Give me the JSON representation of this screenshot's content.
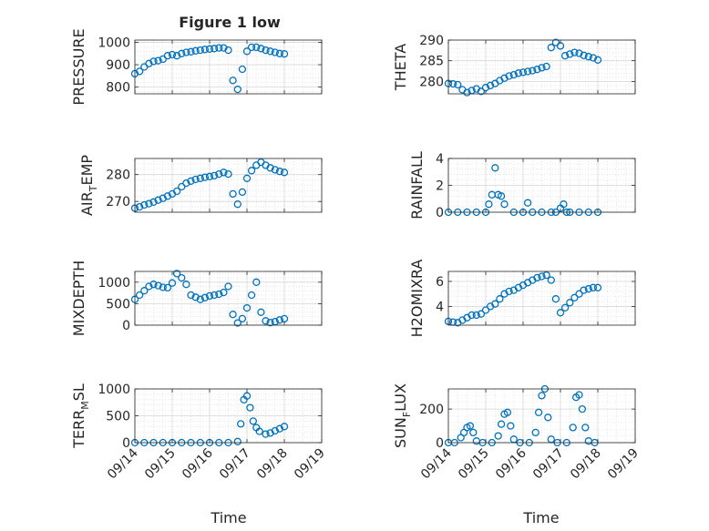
{
  "figure": {
    "title": "Figure 1 low",
    "marker_color": "#0072BD",
    "axes_color": "#262626",
    "grid_color": "#d7d7d7"
  },
  "chart_data": [
    {
      "type": "scatter",
      "ylabel": "PRESSURE",
      "ylim": [
        770,
        1010
      ],
      "yticks": [
        800,
        900,
        1000
      ],
      "x": [
        "09/14 00:00",
        "09/14 03:00",
        "09/14 06:00",
        "09/14 09:00",
        "09/14 12:00",
        "09/14 15:00",
        "09/14 18:00",
        "09/14 21:00",
        "09/15 00:00",
        "09/15 03:00",
        "09/15 06:00",
        "09/15 09:00",
        "09/15 12:00",
        "09/15 15:00",
        "09/15 18:00",
        "09/15 21:00",
        "09/16 00:00",
        "09/16 03:00",
        "09/16 06:00",
        "09/16 09:00",
        "09/16 12:00",
        "09/16 15:00",
        "09/16 18:00",
        "09/16 21:00",
        "09/17 00:00",
        "09/17 03:00",
        "09/17 06:00",
        "09/17 09:00",
        "09/17 12:00",
        "09/17 15:00",
        "09/17 18:00",
        "09/17 21:00",
        "09/18 00:00"
      ],
      "y": [
        860,
        870,
        890,
        905,
        915,
        918,
        925,
        940,
        945,
        940,
        950,
        955,
        958,
        962,
        965,
        968,
        970,
        972,
        975,
        975,
        965,
        830,
        790,
        880,
        960,
        978,
        978,
        972,
        965,
        960,
        955,
        950,
        948
      ]
    },
    {
      "type": "scatter",
      "ylabel": "THETA",
      "ylim": [
        277,
        290
      ],
      "yticks": [
        280,
        285,
        290
      ],
      "x": [
        "09/14 00:00",
        "09/14 03:00",
        "09/14 06:00",
        "09/14 09:00",
        "09/14 12:00",
        "09/14 15:00",
        "09/14 18:00",
        "09/14 21:00",
        "09/15 00:00",
        "09/15 03:00",
        "09/15 06:00",
        "09/15 09:00",
        "09/15 12:00",
        "09/15 15:00",
        "09/15 18:00",
        "09/15 21:00",
        "09/16 00:00",
        "09/16 03:00",
        "09/16 06:00",
        "09/16 09:00",
        "09/16 12:00",
        "09/16 15:00",
        "09/16 18:00",
        "09/16 21:00",
        "09/17 00:00",
        "09/17 03:00",
        "09/17 06:00",
        "09/17 09:00",
        "09/17 12:00",
        "09/17 15:00",
        "09/17 18:00",
        "09/17 21:00",
        "09/18 00:00"
      ],
      "y": [
        279.5,
        279.4,
        279.2,
        278.0,
        277.3,
        277.8,
        278.2,
        277.6,
        278.5,
        279.0,
        279.5,
        280.2,
        280.8,
        281.3,
        281.6,
        282.0,
        282.2,
        282.4,
        282.6,
        282.9,
        283.3,
        283.6,
        288.2,
        289.4,
        288.6,
        286.2,
        286.6,
        287.0,
        286.8,
        286.3,
        286.0,
        285.7,
        285.2
      ]
    },
    {
      "type": "scatter",
      "ylabel": "AIR",
      "ylabel_sub": "T",
      "ylabel_rest": "EMP",
      "ylim": [
        266,
        286
      ],
      "yticks": [
        270,
        280
      ],
      "x": [
        "09/14 00:00",
        "09/14 03:00",
        "09/14 06:00",
        "09/14 09:00",
        "09/14 12:00",
        "09/14 15:00",
        "09/14 18:00",
        "09/14 21:00",
        "09/15 00:00",
        "09/15 03:00",
        "09/15 06:00",
        "09/15 09:00",
        "09/15 12:00",
        "09/15 15:00",
        "09/15 18:00",
        "09/15 21:00",
        "09/16 00:00",
        "09/16 03:00",
        "09/16 06:00",
        "09/16 09:00",
        "09/16 12:00",
        "09/16 15:00",
        "09/16 18:00",
        "09/16 21:00",
        "09/17 00:00",
        "09/17 03:00",
        "09/17 06:00",
        "09/17 09:00",
        "09/17 12:00",
        "09/17 15:00",
        "09/17 18:00",
        "09/17 21:00",
        "09/18 00:00"
      ],
      "y": [
        267.5,
        268.0,
        268.7,
        269.2,
        269.8,
        270.5,
        271.2,
        272.0,
        272.8,
        273.8,
        275.5,
        276.8,
        277.6,
        278.2,
        278.6,
        279.0,
        279.3,
        279.6,
        280.2,
        280.8,
        280.2,
        272.8,
        269.0,
        273.5,
        278.6,
        281.5,
        283.5,
        284.6,
        283.5,
        282.5,
        281.8,
        281.2,
        280.8
      ]
    },
    {
      "type": "scatter",
      "ylabel": "RAINFALL",
      "ylim": [
        0,
        4
      ],
      "yticks": [
        0,
        2,
        4
      ],
      "x": [
        "09/14 00:00",
        "09/14 06:00",
        "09/14 12:00",
        "09/14 18:00",
        "09/15 00:00",
        "09/15 02:00",
        "09/15 04:00",
        "09/15 06:00",
        "09/15 08:00",
        "09/15 10:00",
        "09/15 12:00",
        "09/15 18:00",
        "09/16 00:00",
        "09/16 03:00",
        "09/16 06:00",
        "09/16 12:00",
        "09/16 18:00",
        "09/16 21:00",
        "09/17 00:00",
        "09/17 02:00",
        "09/17 04:00",
        "09/17 06:00",
        "09/17 12:00",
        "09/17 18:00",
        "09/18 00:00"
      ],
      "y": [
        0,
        0,
        0,
        0,
        0,
        0.6,
        1.3,
        3.3,
        1.3,
        1.2,
        0.6,
        0,
        0,
        0.7,
        0,
        0,
        0,
        0,
        0.3,
        0.6,
        0,
        0,
        0,
        0,
        0
      ]
    },
    {
      "type": "scatter",
      "ylabel": "MIXDEPTH",
      "ylim": [
        0,
        1250
      ],
      "yticks": [
        0,
        500,
        1000
      ],
      "x": [
        "09/14 00:00",
        "09/14 03:00",
        "09/14 06:00",
        "09/14 09:00",
        "09/14 12:00",
        "09/14 15:00",
        "09/14 18:00",
        "09/14 21:00",
        "09/15 00:00",
        "09/15 03:00",
        "09/15 06:00",
        "09/15 09:00",
        "09/15 12:00",
        "09/15 15:00",
        "09/15 18:00",
        "09/15 21:00",
        "09/16 00:00",
        "09/16 03:00",
        "09/16 06:00",
        "09/16 09:00",
        "09/16 12:00",
        "09/16 15:00",
        "09/16 18:00",
        "09/16 21:00",
        "09/17 00:00",
        "09/17 03:00",
        "09/17 06:00",
        "09/17 09:00",
        "09/17 12:00",
        "09/17 15:00",
        "09/17 18:00",
        "09/17 21:00",
        "09/18 00:00"
      ],
      "y": [
        600,
        700,
        800,
        900,
        950,
        920,
        880,
        870,
        980,
        1200,
        1100,
        950,
        700,
        650,
        600,
        640,
        680,
        700,
        720,
        760,
        900,
        250,
        50,
        150,
        400,
        700,
        1000,
        300,
        100,
        60,
        80,
        120,
        150
      ]
    },
    {
      "type": "scatter",
      "ylabel": "H2OMIXRA",
      "ylim": [
        2.5,
        6.8
      ],
      "yticks": [
        4,
        6
      ],
      "x": [
        "09/14 00:00",
        "09/14 03:00",
        "09/14 06:00",
        "09/14 09:00",
        "09/14 12:00",
        "09/14 15:00",
        "09/14 18:00",
        "09/14 21:00",
        "09/15 00:00",
        "09/15 03:00",
        "09/15 06:00",
        "09/15 09:00",
        "09/15 12:00",
        "09/15 15:00",
        "09/15 18:00",
        "09/15 21:00",
        "09/16 00:00",
        "09/16 03:00",
        "09/16 06:00",
        "09/16 09:00",
        "09/16 12:00",
        "09/16 15:00",
        "09/16 18:00",
        "09/16 21:00",
        "09/17 00:00",
        "09/17 03:00",
        "09/17 06:00",
        "09/17 09:00",
        "09/17 12:00",
        "09/17 15:00",
        "09/17 18:00",
        "09/17 21:00",
        "09/18 00:00"
      ],
      "y": [
        2.8,
        2.75,
        2.7,
        2.9,
        3.1,
        3.3,
        3.3,
        3.4,
        3.7,
        4.0,
        4.2,
        4.6,
        5.0,
        5.2,
        5.3,
        5.5,
        5.7,
        5.9,
        6.1,
        6.3,
        6.4,
        6.5,
        6.1,
        4.6,
        3.5,
        3.9,
        4.3,
        4.7,
        5.0,
        5.3,
        5.4,
        5.5,
        5.5
      ]
    },
    {
      "type": "scatter",
      "ylabel": "TERR",
      "ylabel_sub": "M",
      "ylabel_rest": "SL",
      "ylim": [
        0,
        1000
      ],
      "yticks": [
        0,
        500,
        1000
      ],
      "x": [
        "09/14 00:00",
        "09/14 06:00",
        "09/14 12:00",
        "09/14 18:00",
        "09/15 00:00",
        "09/15 06:00",
        "09/15 12:00",
        "09/15 18:00",
        "09/16 00:00",
        "09/16 06:00",
        "09/16 12:00",
        "09/16 18:00",
        "09/16 20:00",
        "09/16 22:00",
        "09/17 00:00",
        "09/17 02:00",
        "09/17 04:00",
        "09/17 06:00",
        "09/17 08:00",
        "09/17 12:00",
        "09/17 15:00",
        "09/17 18:00",
        "09/17 21:00",
        "09/18 00:00"
      ],
      "y": [
        0,
        0,
        0,
        0,
        0,
        0,
        0,
        0,
        0,
        0,
        0,
        20,
        350,
        800,
        870,
        650,
        400,
        280,
        210,
        160,
        180,
        220,
        260,
        300
      ]
    },
    {
      "type": "scatter",
      "ylabel": "SUN",
      "ylabel_sub": "F",
      "ylabel_rest": "LUX",
      "ylim": [
        0,
        320
      ],
      "yticks": [
        0,
        200
      ],
      "x": [
        "09/14 00:00",
        "09/14 04:00",
        "09/14 08:00",
        "09/14 10:00",
        "09/14 12:00",
        "09/14 14:00",
        "09/14 16:00",
        "09/14 18:00",
        "09/14 22:00",
        "09/15 04:00",
        "09/15 08:00",
        "09/15 10:00",
        "09/15 12:00",
        "09/15 14:00",
        "09/15 16:00",
        "09/15 18:00",
        "09/15 22:00",
        "09/16 04:00",
        "09/16 08:00",
        "09/16 10:00",
        "09/16 12:00",
        "09/16 14:00",
        "09/16 16:00",
        "09/16 18:00",
        "09/16 22:00",
        "09/17 04:00",
        "09/17 08:00",
        "09/17 10:00",
        "09/17 12:00",
        "09/17 14:00",
        "09/17 16:00",
        "09/17 18:00",
        "09/17 22:00"
      ],
      "y": [
        0,
        0,
        30,
        60,
        90,
        100,
        60,
        10,
        0,
        0,
        40,
        110,
        170,
        180,
        100,
        20,
        0,
        0,
        60,
        180,
        280,
        320,
        150,
        20,
        0,
        0,
        90,
        270,
        285,
        200,
        90,
        10,
        0
      ]
    }
  ],
  "x_axis": {
    "ticks": [
      "09/14",
      "09/15",
      "09/16",
      "09/17",
      "09/18",
      "09/19"
    ],
    "start": "09/14 00:00",
    "end": "09/19 00:00",
    "xlabel": "Time"
  }
}
